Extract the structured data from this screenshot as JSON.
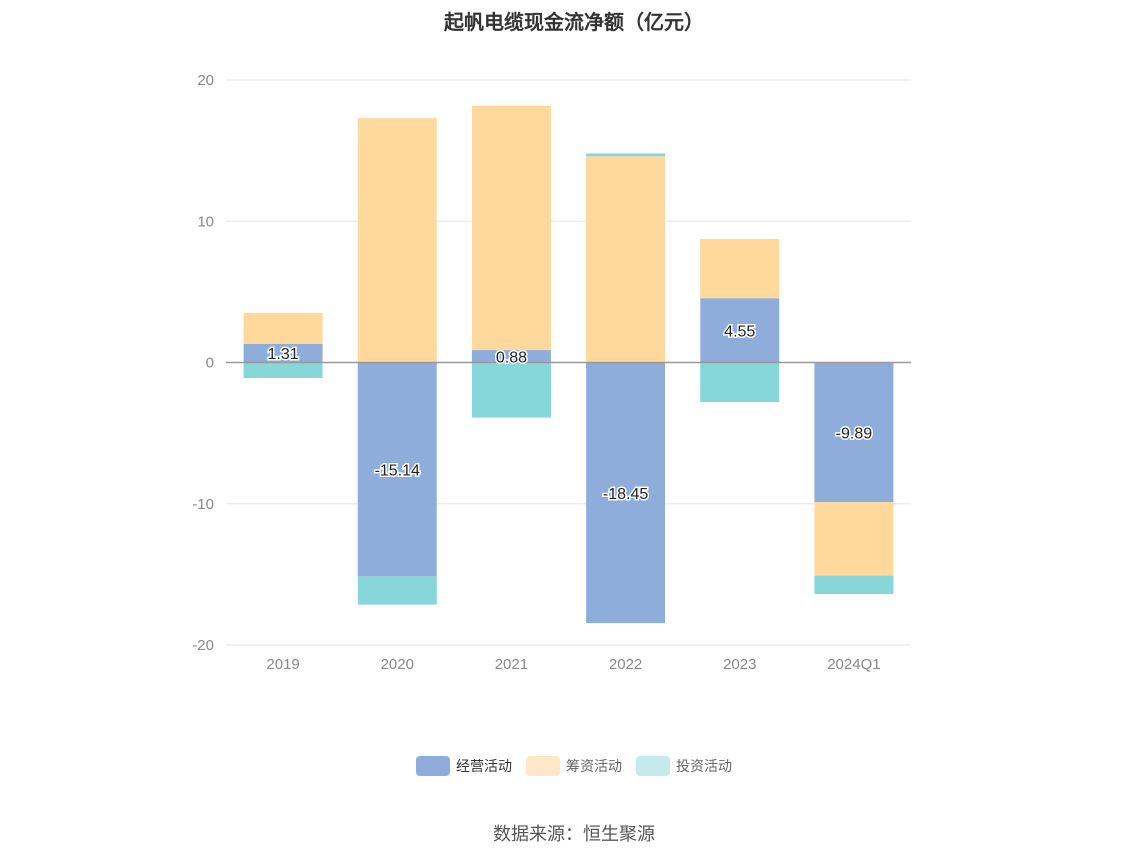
{
  "title": "起帆电缆现金流净额（亿元）",
  "source_text": "数据来源：恒生聚源",
  "colors": {
    "operating": "#8EADDB",
    "financing": "#FFD99B",
    "investing": "#87D6DA",
    "operating_legend": "#8EADDB",
    "financing_legend": "#FDE7C6",
    "investing_legend": "#C4EAEC",
    "grid": "#E3E6EE",
    "zero_axis": "#999999",
    "tick_text": "#888888"
  },
  "legend": [
    {
      "label": "经营活动",
      "key": "operating"
    },
    {
      "label": "筹资活动",
      "key": "financing"
    },
    {
      "label": "投资活动",
      "key": "investing"
    }
  ],
  "chart_data": {
    "type": "bar",
    "stacked": true,
    "title": "起帆电缆现金流净额（亿元）",
    "categories": [
      "2019",
      "2020",
      "2021",
      "2022",
      "2023",
      "2024Q1"
    ],
    "ylim": [
      -20,
      20
    ],
    "yticks": [
      20,
      10,
      0,
      -10,
      -20
    ],
    "grid": true,
    "legend_position": "bottom",
    "series": [
      {
        "name": "经营活动",
        "key": "operating",
        "values": [
          1.31,
          -15.14,
          0.88,
          -18.45,
          4.55,
          -9.89
        ],
        "show_labels": true
      },
      {
        "name": "筹资活动",
        "key": "financing",
        "values": [
          2.2,
          17.3,
          17.3,
          14.6,
          4.2,
          -5.2
        ],
        "show_labels": false
      },
      {
        "name": "投资活动",
        "key": "investing",
        "values": [
          -1.1,
          -2.0,
          -3.9,
          0.2,
          -2.8,
          -1.3
        ],
        "show_labels": false
      }
    ]
  }
}
